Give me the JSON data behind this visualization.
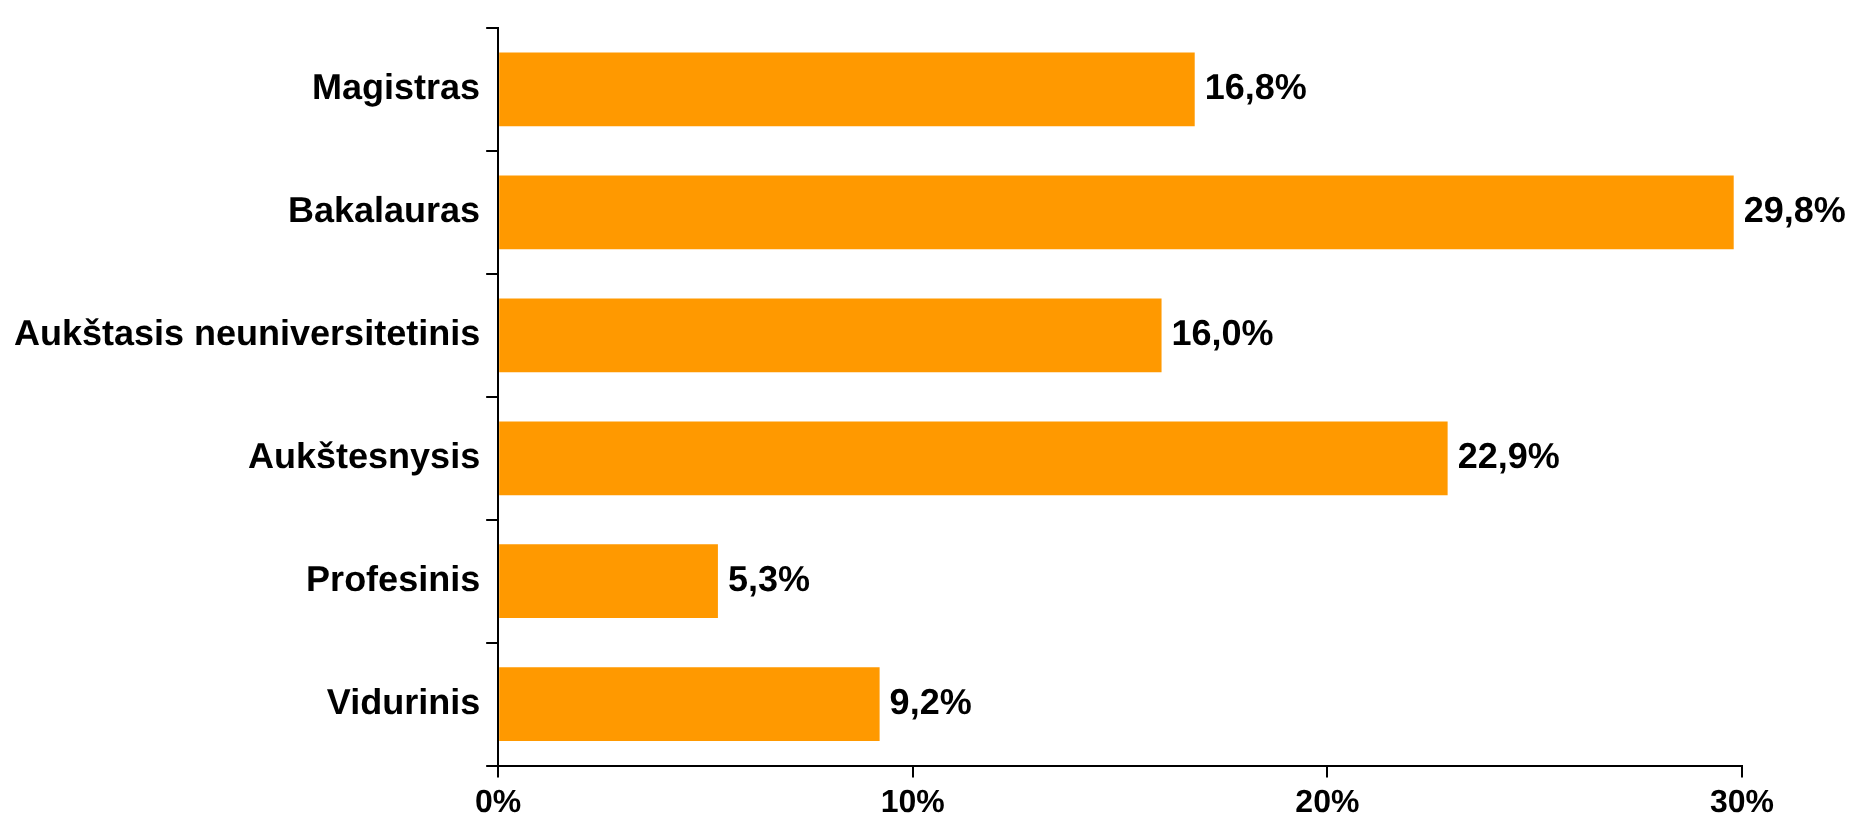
{
  "chart_data": {
    "type": "bar",
    "orientation": "horizontal",
    "categories": [
      "Magistras",
      "Bakalauras",
      "Aukštasis neuniversitetinis",
      "Aukštesnysis",
      "Profesinis",
      "Vidurinis"
    ],
    "values": [
      16.8,
      29.8,
      16.0,
      22.9,
      5.3,
      9.2
    ],
    "value_labels": [
      "16,8%",
      "29,8%",
      "16,0%",
      "22,9%",
      "5,3%",
      "9,2%"
    ],
    "color": "#ff9900",
    "xlim": [
      0,
      30
    ],
    "xticks": [
      {
        "value": 0,
        "label": "0%"
      },
      {
        "value": 10,
        "label": "10%"
      },
      {
        "value": 20,
        "label": "20%"
      },
      {
        "value": 30,
        "label": "30%"
      }
    ],
    "grid": false,
    "legend": false
  }
}
